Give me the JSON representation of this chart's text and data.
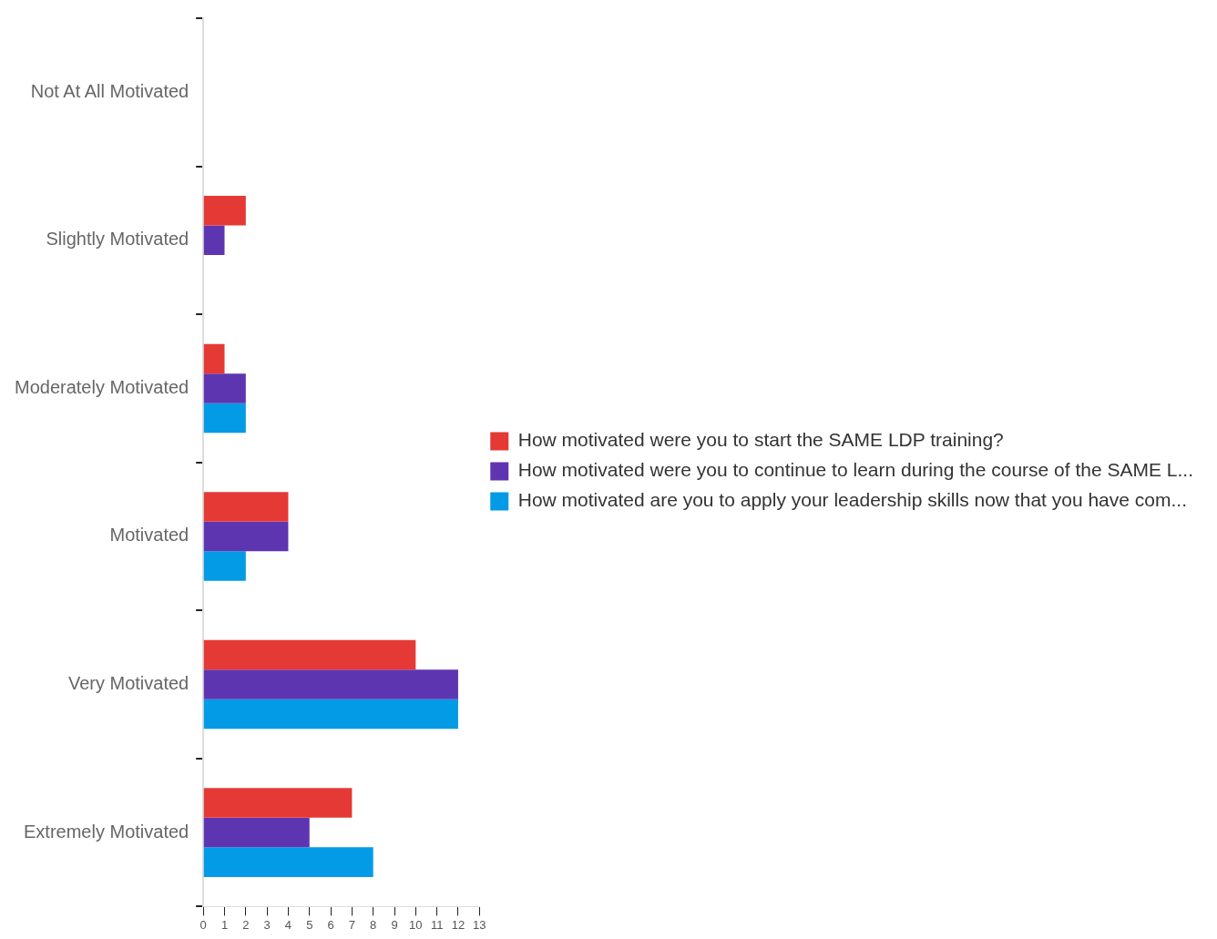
{
  "chart_data": {
    "type": "bar",
    "orientation": "horizontal",
    "categories": [
      "Not At All Motivated",
      "Slightly Motivated",
      "Moderately Motivated",
      "Motivated",
      "Very Motivated",
      "Extremely Motivated"
    ],
    "series": [
      {
        "name": "How motivated were you to start the SAME LDP training?",
        "color": "#e53935",
        "values": [
          0,
          2,
          1,
          4,
          10,
          7
        ]
      },
      {
        "name": "How motivated were you to continue to learn during the course of the SAME L...",
        "color": "#5e35b1",
        "values": [
          0,
          1,
          2,
          4,
          12,
          5
        ]
      },
      {
        "name": "How motivated are you to apply your leadership skills now that you have com...",
        "color": "#039be5",
        "values": [
          0,
          0,
          2,
          2,
          12,
          8
        ]
      }
    ],
    "xlim": [
      0,
      13
    ],
    "xticks": [
      0,
      1,
      2,
      3,
      4,
      5,
      6,
      7,
      8,
      9,
      10,
      11,
      12,
      13
    ],
    "grid": false,
    "legend": "right"
  }
}
